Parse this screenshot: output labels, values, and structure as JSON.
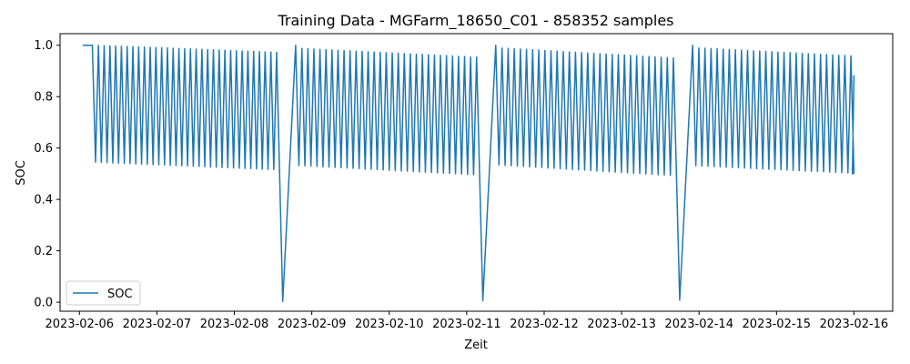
{
  "chart_data": {
    "type": "line",
    "title": "Training Data - MGFarm_18650_C01 - 858352 samples",
    "xlabel": "Zeit",
    "ylabel": "SOC",
    "x_unit": "date",
    "xlim": [
      "2023-02-05T18:00",
      "2023-02-16T12:00"
    ],
    "ylim": [
      -0.035,
      1.045
    ],
    "x_ticks": [
      "2023-02-06",
      "2023-02-07",
      "2023-02-08",
      "2023-02-09",
      "2023-02-10",
      "2023-02-11",
      "2023-02-12",
      "2023-02-13",
      "2023-02-14",
      "2023-02-15",
      "2023-02-16"
    ],
    "y_ticks": [
      "0.0",
      "0.2",
      "0.4",
      "0.6",
      "0.8",
      "1.0"
    ],
    "legend": {
      "position": "lower-left",
      "entries": [
        "SOC"
      ]
    },
    "grid": false,
    "series": [
      {
        "name": "SOC",
        "color": "#1f77b4",
        "points": [
          [
            "2023-02-06T01:00",
            1.0
          ],
          [
            "2023-02-06T04:00",
            1.0
          ],
          [
            "2023-02-06T05:00",
            0.545
          ],
          [
            "2023-02-08T14:00",
            0.515
          ],
          [
            "2023-02-08T15:00",
            0.003
          ],
          [
            "2023-02-11T04:00",
            0.495
          ],
          [
            "2023-02-11T05:00",
            0.006
          ],
          [
            "2023-02-13T17:00",
            0.492
          ],
          [
            "2023-02-13T18:00",
            0.008
          ],
          [
            "2023-02-16T00:00",
            0.883
          ]
        ],
        "segments": [
          {
            "start": "2023-02-06T05:00",
            "end": "2023-02-08T14:00",
            "cycles": 32,
            "max_start": 1.0,
            "max_end": 0.972,
            "min_start": 0.545,
            "min_end": 0.515
          },
          {
            "start": "2023-02-08T20:00",
            "end": "2023-02-11T04:00",
            "cycles": 30,
            "max_start": 0.988,
            "max_end": 0.953,
            "min_start": 0.532,
            "min_end": 0.495
          },
          {
            "start": "2023-02-11T10:00",
            "end": "2023-02-13T17:00",
            "cycles": 29,
            "max_start": 0.99,
            "max_end": 0.95,
            "min_start": 0.534,
            "min_end": 0.492
          },
          {
            "start": "2023-02-13T23:00",
            "end": "2023-02-16T00:00",
            "cycles": 26,
            "max_start": 0.99,
            "max_end": 0.958,
            "min_start": 0.531,
            "min_end": 0.502
          }
        ]
      }
    ]
  }
}
